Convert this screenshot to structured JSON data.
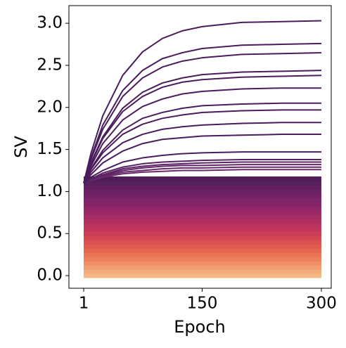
{
  "chart_data": {
    "type": "line",
    "x_label": "Epoch",
    "y_label": "SV",
    "x": [
      1,
      10,
      25,
      50,
      75,
      100,
      125,
      150,
      200,
      250,
      300
    ],
    "xlim": [
      -17.6,
      312.4
    ],
    "ylim": [
      -0.15,
      3.21
    ],
    "xticks": [
      1,
      150,
      300
    ],
    "yticks": [
      {
        "value": 0,
        "label": "0.0"
      },
      {
        "value": 0.5,
        "label": "0.5"
      },
      {
        "value": 1,
        "label": "1.0"
      },
      {
        "value": 1.5,
        "label": "1.5"
      },
      {
        "value": 2,
        "label": "2.0"
      },
      {
        "value": 2.5,
        "label": "2.5"
      },
      {
        "value": 3,
        "label": "3.0"
      }
    ],
    "grid": false,
    "series": [
      {
        "color": "#f5b785",
        "values": [
          0,
          0,
          0,
          0,
          0,
          0,
          0,
          0,
          0,
          0,
          0
        ]
      },
      {
        "color": "#f4aa7a",
        "values": [
          0.05,
          0.05,
          0.05,
          0.05,
          0.05,
          0.05,
          0.05,
          0.05,
          0.05,
          0.05,
          0.05
        ]
      },
      {
        "color": "#f29d6f",
        "values": [
          0.1,
          0.1,
          0.1,
          0.1,
          0.1,
          0.1,
          0.1,
          0.1,
          0.1,
          0.1,
          0.1
        ]
      },
      {
        "color": "#f08f65",
        "values": [
          0.15,
          0.15,
          0.15,
          0.15,
          0.15,
          0.15,
          0.15,
          0.15,
          0.15,
          0.15,
          0.15
        ]
      },
      {
        "color": "#ed815c",
        "values": [
          0.2,
          0.2,
          0.2,
          0.2,
          0.2,
          0.2,
          0.2,
          0.2,
          0.2,
          0.2,
          0.2
        ]
      },
      {
        "color": "#e97354",
        "values": [
          0.25,
          0.25,
          0.25,
          0.25,
          0.25,
          0.25,
          0.25,
          0.25,
          0.25,
          0.25,
          0.25
        ]
      },
      {
        "color": "#e5664f",
        "values": [
          0.3,
          0.3,
          0.3,
          0.3,
          0.3,
          0.3,
          0.3,
          0.3,
          0.3,
          0.3,
          0.3
        ]
      },
      {
        "color": "#e05a4d",
        "values": [
          0.35,
          0.35,
          0.35,
          0.35,
          0.35,
          0.35,
          0.35,
          0.35,
          0.35,
          0.35,
          0.35
        ]
      },
      {
        "color": "#da4f4f",
        "values": [
          0.4,
          0.4,
          0.4,
          0.4,
          0.4,
          0.4,
          0.4,
          0.4,
          0.4,
          0.4,
          0.4
        ]
      },
      {
        "color": "#d34652",
        "values": [
          0.45,
          0.45,
          0.45,
          0.45,
          0.45,
          0.45,
          0.45,
          0.45,
          0.45,
          0.45,
          0.45
        ]
      },
      {
        "color": "#cb3e56",
        "values": [
          0.5,
          0.5,
          0.5,
          0.5,
          0.5,
          0.5,
          0.5,
          0.5,
          0.5,
          0.5,
          0.5
        ]
      },
      {
        "color": "#c3385a",
        "values": [
          0.55,
          0.55,
          0.55,
          0.55,
          0.55,
          0.55,
          0.55,
          0.55,
          0.55,
          0.55,
          0.55
        ]
      },
      {
        "color": "#ba335e",
        "values": [
          0.6,
          0.6,
          0.6,
          0.6,
          0.6,
          0.6,
          0.6,
          0.6,
          0.6,
          0.6,
          0.6
        ]
      },
      {
        "color": "#b02f61",
        "values": [
          0.65,
          0.65,
          0.65,
          0.65,
          0.65,
          0.65,
          0.65,
          0.65,
          0.65,
          0.65,
          0.65
        ]
      },
      {
        "color": "#a62c64",
        "values": [
          0.7,
          0.7,
          0.7,
          0.7,
          0.7,
          0.7,
          0.7,
          0.7,
          0.7,
          0.7,
          0.7
        ]
      },
      {
        "color": "#9c2966",
        "values": [
          0.75,
          0.75,
          0.75,
          0.75,
          0.75,
          0.75,
          0.75,
          0.75,
          0.75,
          0.75,
          0.75
        ]
      },
      {
        "color": "#922767",
        "values": [
          0.8,
          0.8,
          0.8,
          0.8,
          0.8,
          0.8,
          0.8,
          0.8,
          0.8,
          0.8,
          0.8
        ]
      },
      {
        "color": "#882568",
        "values": [
          0.85,
          0.85,
          0.85,
          0.85,
          0.85,
          0.85,
          0.85,
          0.85,
          0.85,
          0.85,
          0.85
        ]
      },
      {
        "color": "#7e2468",
        "values": [
          0.9,
          0.9,
          0.9,
          0.9,
          0.9,
          0.9,
          0.9,
          0.9,
          0.9,
          0.9,
          0.9
        ]
      },
      {
        "color": "#742267",
        "values": [
          0.95,
          0.95,
          0.95,
          0.95,
          0.95,
          0.95,
          0.95,
          0.95,
          0.95,
          0.95,
          0.95
        ]
      },
      {
        "color": "#6a2165",
        "values": [
          1,
          1,
          1,
          1,
          1,
          1,
          1,
          1,
          1,
          1,
          1
        ]
      },
      {
        "color": "#611f62",
        "values": [
          1.05,
          1.05,
          1.05,
          1.05,
          1.05,
          1.05,
          1.05,
          1.05,
          1.05,
          1.05,
          1.05
        ]
      },
      {
        "color": "#581f5e",
        "values": [
          1.1,
          1.1,
          1.1,
          1.1,
          1.1,
          1.1,
          1.1,
          1.1,
          1.1,
          1.1,
          1.1
        ]
      },
      {
        "color": "#4f1d5a",
        "values": [
          1.15,
          1.15,
          1.15,
          1.15,
          1.15,
          1.15,
          1.15,
          1.15,
          1.15,
          1.15,
          1.15
        ]
      },
      {
        "color": "#6a2a6a",
        "values": [
          1.1,
          1.13,
          1.17,
          1.21,
          1.23,
          1.24,
          1.25,
          1.25,
          1.26,
          1.26,
          1.26
        ]
      },
      {
        "color": "#66286a",
        "values": [
          1.1,
          1.13,
          1.18,
          1.23,
          1.25,
          1.27,
          1.28,
          1.28,
          1.29,
          1.29,
          1.29
        ]
      },
      {
        "color": "#612668",
        "values": [
          1.1,
          1.14,
          1.19,
          1.25,
          1.28,
          1.3,
          1.31,
          1.31,
          1.32,
          1.32,
          1.32
        ]
      },
      {
        "color": "#5c2466",
        "values": [
          1.1,
          1.15,
          1.2,
          1.27,
          1.3,
          1.32,
          1.33,
          1.34,
          1.35,
          1.35,
          1.35
        ]
      },
      {
        "color": "#572263",
        "values": [
          1.1,
          1.15,
          1.22,
          1.29,
          1.33,
          1.35,
          1.36,
          1.37,
          1.38,
          1.38,
          1.38
        ]
      },
      {
        "color": "#4a1c5c",
        "values": [
          1.1,
          1.17,
          1.25,
          1.35,
          1.4,
          1.43,
          1.45,
          1.46,
          1.47,
          1.47,
          1.47
        ]
      },
      {
        "color": "#4a1c5c",
        "values": [
          1.1,
          1.2,
          1.34,
          1.48,
          1.57,
          1.62,
          1.64,
          1.66,
          1.67,
          1.68,
          1.68
        ]
      },
      {
        "color": "#4a1c5c",
        "values": [
          1.1,
          1.23,
          1.4,
          1.58,
          1.68,
          1.74,
          1.77,
          1.79,
          1.81,
          1.82,
          1.82
        ]
      },
      {
        "color": "#4a1c5c",
        "values": [
          1.1,
          1.26,
          1.46,
          1.68,
          1.8,
          1.87,
          1.91,
          1.94,
          1.96,
          1.97,
          1.97
        ]
      },
      {
        "color": "#4a1c5c",
        "values": [
          1.1,
          1.27,
          1.49,
          1.73,
          1.87,
          1.94,
          1.99,
          2.02,
          2.04,
          2.05,
          2.05
        ]
      },
      {
        "color": "#4a1c5c",
        "values": [
          1.1,
          1.3,
          1.57,
          1.85,
          2.01,
          2.1,
          2.16,
          2.19,
          2.22,
          2.23,
          2.23
        ]
      },
      {
        "color": "#4a1c5c",
        "values": [
          1.1,
          1.33,
          1.63,
          1.95,
          2.13,
          2.24,
          2.3,
          2.33,
          2.36,
          2.37,
          2.38
        ]
      },
      {
        "color": "#4a1c5c",
        "values": [
          1.1,
          1.34,
          1.65,
          1.99,
          2.18,
          2.29,
          2.35,
          2.39,
          2.42,
          2.43,
          2.44
        ]
      },
      {
        "color": "#4a1c5c",
        "values": [
          1.1,
          1.38,
          1.74,
          2.13,
          2.35,
          2.48,
          2.55,
          2.59,
          2.63,
          2.64,
          2.65
        ]
      },
      {
        "color": "#4a1c5c",
        "values": [
          1.1,
          1.4,
          1.79,
          2.2,
          2.44,
          2.58,
          2.65,
          2.7,
          2.74,
          2.75,
          2.76
        ]
      },
      {
        "color": "#4a1c5c",
        "values": [
          1.1,
          1.45,
          1.9,
          2.38,
          2.66,
          2.82,
          2.91,
          2.96,
          3.01,
          3.02,
          3.03
        ]
      }
    ]
  }
}
